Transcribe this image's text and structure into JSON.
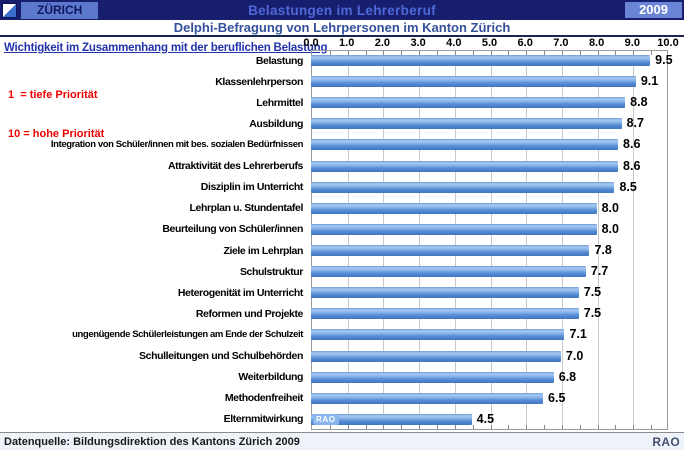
{
  "header": {
    "canton_label": "ZÜRICH",
    "title": "Belastungen im Lehrerberuf",
    "year": "2009"
  },
  "subtitle": "Delphi-Befragung von Lehrpersonen im Kanton Zürich",
  "annotations": {
    "axis_note": "Wichtigkeit im Zusammenhang mit der beruflichen Belastung",
    "legend_line1": "1  = tiefe Priorität",
    "legend_line2": "10 = hohe Priorität"
  },
  "watermark": {
    "bar_badge": "RAO",
    "footer_credit": "RAO"
  },
  "footer": {
    "source": "Datenquelle: Bildungsdirektion des Kantons Zürich 2009"
  },
  "icons": {
    "canton_flag": "zurich-flag-icon"
  },
  "colors": {
    "header_bar": "#171e6e",
    "header_box": "#5b78cc",
    "title_text": "#4f68d8",
    "subtitle_text": "#35519e",
    "axis_note_text": "#2233aa",
    "legend_text": "#ee0000",
    "bar_main": "#5b91d8",
    "gridline": "#c9c9c9",
    "flag_blue": "#3a6fd0"
  },
  "chart_data": {
    "type": "bar",
    "orientation": "horizontal",
    "title": "Belastungen im Lehrerberuf",
    "subtitle": "Delphi-Befragung von Lehrpersonen im Kanton Zürich",
    "categories": [
      "Belastung",
      "Klassenlehrperson",
      "Lehrmittel",
      "Ausbildung",
      "Integration von Schüler/innen mit bes. sozialen Bedürfnissen",
      "Attraktivität des Lehrerberufs",
      "Disziplin im Unterricht",
      "Lehrplan u. Stundentafel",
      "Beurteilung von Schüler/innen",
      "Ziele im Lehrplan",
      "Schulstruktur",
      "Heterogenität im Unterricht",
      "Reformen und Projekte",
      "ungenügende Schülerleistungen am Ende der Schulzeit",
      "Schulleitungen und Schulbehörden",
      "Weiterbildung",
      "Methodenfreiheit",
      "Elternmitwirkung"
    ],
    "values": [
      9.5,
      9.1,
      8.8,
      8.7,
      8.6,
      8.6,
      8.5,
      8.0,
      8.0,
      7.8,
      7.7,
      7.5,
      7.5,
      7.1,
      7.0,
      6.8,
      6.5,
      4.5
    ],
    "xlim": [
      0,
      10
    ],
    "xticks": [
      0.0,
      1.0,
      2.0,
      3.0,
      4.0,
      5.0,
      6.0,
      7.0,
      8.0,
      9.0,
      10.0
    ],
    "minor_tick_step": 0.5,
    "value_labels": true,
    "grid": true,
    "legend_position": "none",
    "scale_note": "1 = tiefe Priorität, 10 = hohe Priorität"
  }
}
